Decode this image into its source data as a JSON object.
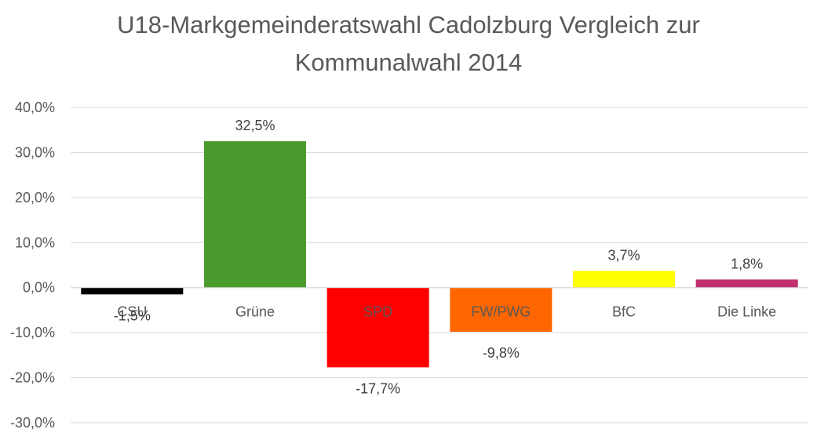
{
  "chart_data": {
    "type": "bar",
    "title_lines": [
      "U18-Markgemeinderatswahl Cadolzburg Vergleich zur",
      "Kommunalwahl 2014"
    ],
    "categories": [
      "CSU",
      "Grüne",
      "SPD",
      "FW/PWG",
      "BfC",
      "Die Linke"
    ],
    "values": [
      -1.5,
      32.5,
      -17.7,
      -9.8,
      3.7,
      1.8
    ],
    "data_labels": [
      "-1,5%",
      "32,5%",
      "-17,7%",
      "-9,8%",
      "3,7%",
      "1,8%"
    ],
    "colors": [
      "#000000",
      "#4a9a2e",
      "#ff0000",
      "#ff6600",
      "#ffff00",
      "#c0306f"
    ],
    "yticks": [
      40,
      30,
      20,
      10,
      0,
      -10,
      -20,
      -30
    ],
    "ytick_labels": [
      "40,0%",
      "30,0%",
      "20,0%",
      "10,0%",
      "0,0%",
      "-10,0%",
      "-20,0%",
      "-30,0%"
    ],
    "ylim": [
      -30,
      40
    ],
    "grid": true,
    "legend": "none"
  }
}
